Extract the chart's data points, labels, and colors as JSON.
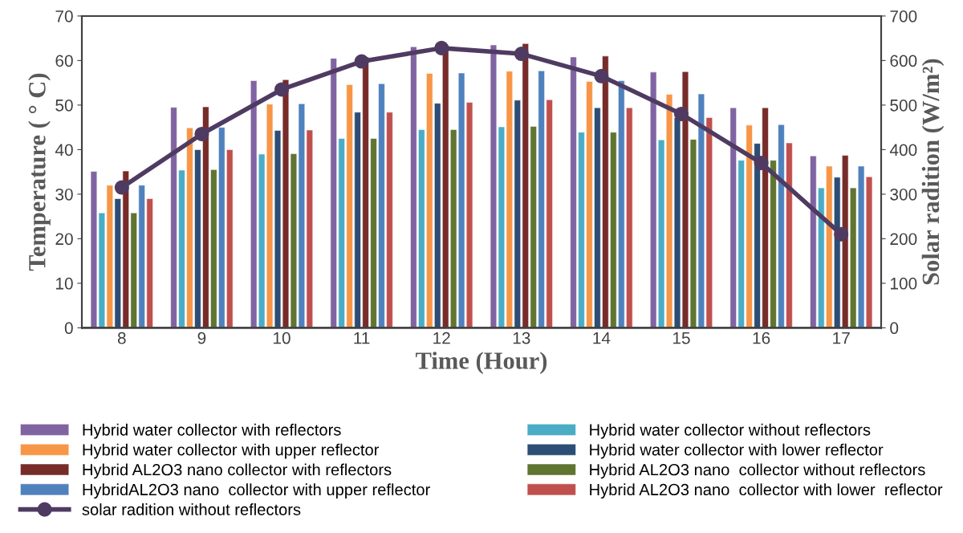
{
  "chart_data": {
    "type": "bar",
    "xlabel": "Time (Hour)",
    "ylabel": "Temperature ( ° C)",
    "y2label": "Solar radition (W/m²)",
    "categories": [
      "8",
      "9",
      "10",
      "11",
      "12",
      "13",
      "14",
      "15",
      "16",
      "17"
    ],
    "ylim": [
      0,
      70
    ],
    "yticks": [
      0,
      10,
      20,
      30,
      40,
      50,
      60,
      70
    ],
    "y2lim": [
      0,
      700
    ],
    "y2ticks": [
      0,
      100,
      200,
      300,
      400,
      500,
      600,
      700
    ],
    "grid": false,
    "legend": "bottom",
    "series": [
      {
        "name": "Hybrid water collector with reflectors",
        "color": "#8064a2",
        "values": [
          35.1,
          49.5,
          55.5,
          60.5,
          63.1,
          63.5,
          60.8,
          57.4,
          49.4,
          38.6
        ]
      },
      {
        "name": "Hybrid water collector without reflectors",
        "color": "#4bacc6",
        "values": [
          25.8,
          35.4,
          39,
          42.5,
          44.5,
          45.1,
          43.9,
          42.2,
          37.6,
          31.4
        ]
      },
      {
        "name": "Hybrid water collector with upper reflector",
        "color": "#f79646",
        "values": [
          32,
          44.9,
          50.2,
          54.6,
          57.1,
          57.6,
          55.3,
          52.4,
          45.5,
          36.3
        ]
      },
      {
        "name": "Hybrid water collector with lower reflector",
        "color": "#2c4d75",
        "values": [
          29,
          40,
          44.3,
          48.4,
          50.4,
          51.1,
          49.4,
          47.2,
          41.4,
          33.8
        ]
      },
      {
        "name": "Hybrid AL2O3 nano collector with reflectors",
        "color": "#772c2a",
        "values": [
          35.2,
          49.6,
          55.7,
          60.8,
          63.5,
          63.8,
          61,
          57.5,
          49.4,
          38.7
        ]
      },
      {
        "name": "Hybrid AL2O3 nano  collector without reflectors",
        "color": "#5f7530",
        "values": [
          25.8,
          35.5,
          39.1,
          42.5,
          44.5,
          45.2,
          43.9,
          42.3,
          37.6,
          31.4
        ]
      },
      {
        "name": "HybridAL2O3 nano  collector with upper reflector",
        "color": "#4f81bd",
        "values": [
          32,
          45,
          50.3,
          54.8,
          57.2,
          57.7,
          55.5,
          52.5,
          45.6,
          36.3
        ]
      },
      {
        "name": "Hybrid AL2O3 nano  collector with lower  reflector",
        "color": "#c0504d",
        "values": [
          29,
          40,
          44.4,
          48.4,
          50.6,
          51.2,
          49.4,
          47.2,
          41.5,
          33.9
        ]
      },
      {
        "name": "solar radition without reflectors",
        "type": "line",
        "axis": "y2",
        "color": "#4f3b62",
        "marker": "circle",
        "line_style": "solid",
        "values": [
          315,
          435,
          535,
          598,
          628,
          615,
          565,
          480,
          370,
          210
        ]
      }
    ]
  }
}
